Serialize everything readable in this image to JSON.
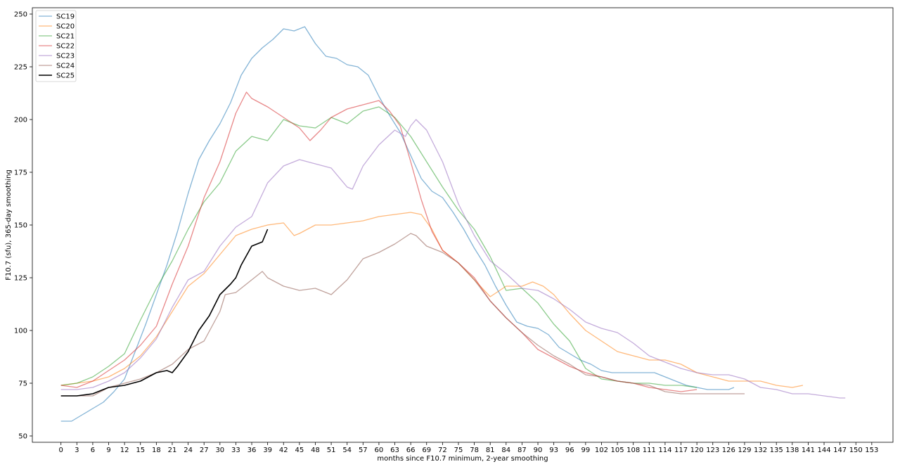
{
  "chart_data": {
    "type": "line",
    "title": "",
    "xlabel": "months since F10.7 minimum, 2-year smoothing",
    "ylabel": "F10.7 (sfu), 365-day smoothing",
    "xlim": [
      -5.4,
      157
    ],
    "ylim": [
      47,
      253
    ],
    "xticks": [
      0,
      3,
      6,
      9,
      12,
      15,
      18,
      21,
      24,
      27,
      30,
      33,
      36,
      39,
      42,
      45,
      48,
      51,
      54,
      57,
      60,
      63,
      66,
      69,
      72,
      75,
      78,
      81,
      84,
      87,
      90,
      93,
      96,
      99,
      102,
      105,
      108,
      111,
      114,
      117,
      120,
      123,
      126,
      129,
      132,
      135,
      138,
      141,
      144,
      147,
      150,
      153
    ],
    "yticks": [
      50,
      75,
      100,
      125,
      150,
      175,
      200,
      225,
      250
    ],
    "grid": false,
    "legend": "top-left",
    "series": [
      {
        "name": "SC19",
        "color": "#1f77b4",
        "width": 1.3,
        "alpha": 0.55,
        "x": [
          0,
          2,
          4,
          6,
          8,
          10,
          12,
          14,
          16,
          18,
          20,
          22,
          24,
          26,
          28,
          30,
          32,
          34,
          36,
          38,
          40,
          42,
          44,
          46,
          48,
          50,
          52,
          54,
          56,
          58,
          60,
          62,
          64,
          66,
          68,
          70,
          72,
          74,
          76,
          78,
          80,
          82,
          84,
          86,
          88,
          90,
          92,
          94,
          96,
          98,
          100,
          102,
          104,
          106,
          108,
          110,
          112,
          114,
          116,
          118,
          120,
          122,
          124,
          126,
          127
        ],
        "y": [
          57,
          57,
          60,
          63,
          66,
          71,
          77,
          90,
          103,
          117,
          131,
          147,
          165,
          181,
          190,
          198,
          208,
          221,
          229,
          234,
          238,
          243,
          242,
          244,
          236,
          230,
          229,
          226,
          225,
          221,
          211,
          202,
          194,
          183,
          172,
          166,
          163,
          156,
          148,
          139,
          131,
          121,
          112,
          104,
          102,
          101,
          98,
          92,
          89,
          86,
          84,
          81,
          80,
          80,
          80,
          80,
          80,
          78,
          76,
          74,
          73,
          72,
          72,
          72,
          73
        ]
      },
      {
        "name": "SC20",
        "color": "#ff7f0e",
        "width": 1.3,
        "alpha": 0.55,
        "x": [
          0,
          3,
          6,
          9,
          12,
          15,
          18,
          21,
          24,
          27,
          30,
          33,
          36,
          39,
          42,
          44,
          45,
          48,
          51,
          54,
          57,
          60,
          63,
          66,
          68,
          70,
          72,
          75,
          78,
          81,
          84,
          87,
          89,
          91,
          93,
          96,
          99,
          102,
          105,
          108,
          111,
          114,
          117,
          120,
          123,
          126,
          129,
          132,
          135,
          138,
          140
        ],
        "y": [
          74,
          75,
          76,
          78,
          82,
          88,
          97,
          109,
          121,
          127,
          136,
          145,
          148,
          150,
          151,
          145,
          146,
          150,
          150,
          151,
          152,
          154,
          155,
          156,
          155,
          148,
          138,
          132,
          124,
          116,
          121,
          121,
          123,
          121,
          117,
          108,
          100,
          95,
          90,
          88,
          86,
          86,
          84,
          80,
          78,
          76,
          76,
          76,
          74,
          73,
          74
        ]
      },
      {
        "name": "SC21",
        "color": "#2ca02c",
        "width": 1.3,
        "alpha": 0.55,
        "x": [
          0,
          3,
          6,
          9,
          12,
          15,
          18,
          21,
          24,
          27,
          30,
          33,
          36,
          39,
          42,
          45,
          48,
          51,
          54,
          57,
          60,
          63,
          66,
          69,
          72,
          75,
          78,
          81,
          84,
          87,
          90,
          93,
          96,
          99,
          102,
          105,
          108,
          111,
          114,
          117,
          120
        ],
        "y": [
          74,
          75,
          78,
          83,
          89,
          105,
          120,
          133,
          148,
          161,
          170,
          185,
          192,
          190,
          200,
          197,
          196,
          201,
          198,
          204,
          206,
          201,
          192,
          180,
          168,
          157,
          148,
          135,
          119,
          120,
          113,
          103,
          95,
          82,
          77,
          76,
          75,
          75,
          74,
          74,
          73
        ]
      },
      {
        "name": "SC22",
        "color": "#d62728",
        "width": 1.3,
        "alpha": 0.55,
        "x": [
          0,
          3,
          6,
          9,
          12,
          15,
          18,
          21,
          24,
          27,
          30,
          33,
          35,
          36,
          39,
          42,
          45,
          47,
          49,
          51,
          54,
          57,
          60,
          62,
          64,
          66,
          68,
          70,
          72,
          75,
          78,
          81,
          84,
          87,
          90,
          93,
          96,
          99,
          102,
          105,
          108,
          111,
          114,
          117,
          120
        ],
        "y": [
          74,
          73,
          76,
          81,
          86,
          93,
          102,
          122,
          140,
          163,
          180,
          203,
          213,
          210,
          206,
          201,
          196,
          190,
          195,
          201,
          205,
          207,
          209,
          204,
          197,
          180,
          162,
          147,
          138,
          132,
          125,
          114,
          106,
          99,
          91,
          87,
          83,
          80,
          78,
          76,
          75,
          73,
          72,
          71,
          72
        ]
      },
      {
        "name": "SC23",
        "color": "#9467bd",
        "width": 1.3,
        "alpha": 0.55,
        "x": [
          0,
          3,
          6,
          9,
          12,
          15,
          18,
          21,
          24,
          27,
          30,
          33,
          36,
          39,
          42,
          45,
          48,
          51,
          54,
          55,
          57,
          60,
          63,
          65,
          66,
          67,
          69,
          72,
          75,
          78,
          81,
          84,
          87,
          90,
          93,
          96,
          99,
          102,
          105,
          108,
          111,
          114,
          117,
          120,
          123,
          126,
          129,
          132,
          135,
          138,
          141,
          144,
          147,
          148
        ],
        "y": [
          72,
          72,
          73,
          76,
          80,
          87,
          96,
          111,
          124,
          128,
          140,
          149,
          154,
          170,
          178,
          181,
          179,
          177,
          168,
          167,
          178,
          188,
          195,
          192,
          197,
          200,
          195,
          180,
          160,
          145,
          133,
          127,
          120,
          119,
          115,
          110,
          104,
          101,
          99,
          94,
          88,
          85,
          82,
          80,
          79,
          79,
          77,
          73,
          72,
          70,
          70,
          69,
          68,
          68
        ]
      },
      {
        "name": "SC24",
        "color": "#8c564b",
        "width": 1.3,
        "alpha": 0.55,
        "x": [
          0,
          3,
          6,
          9,
          12,
          15,
          18,
          21,
          24,
          27,
          30,
          31,
          33,
          36,
          38,
          39,
          42,
          45,
          48,
          51,
          54,
          57,
          60,
          63,
          66,
          67,
          69,
          72,
          75,
          78,
          81,
          84,
          87,
          90,
          93,
          96,
          99,
          102,
          105,
          108,
          111,
          114,
          117,
          120,
          123,
          126,
          129
        ],
        "y": [
          69,
          69,
          69,
          73,
          75,
          77,
          80,
          84,
          91,
          95,
          109,
          117,
          118,
          124,
          128,
          125,
          121,
          119,
          120,
          117,
          124,
          134,
          137,
          141,
          146,
          145,
          140,
          137,
          132,
          124,
          114,
          106,
          99,
          93,
          88,
          84,
          79,
          78,
          76,
          75,
          74,
          71,
          70,
          70,
          70,
          70,
          70
        ]
      },
      {
        "name": "SC25",
        "color": "#000000",
        "width": 1.6,
        "alpha": 1,
        "x": [
          0,
          3,
          6,
          9,
          12,
          15,
          18,
          20,
          21,
          22,
          24,
          26,
          28,
          30,
          32,
          33,
          34,
          36,
          38,
          39
        ],
        "y": [
          69,
          69,
          70,
          73,
          74,
          76,
          80,
          81,
          80,
          83,
          90,
          100,
          107,
          117,
          122,
          125,
          131,
          140,
          142,
          148
        ]
      }
    ]
  }
}
